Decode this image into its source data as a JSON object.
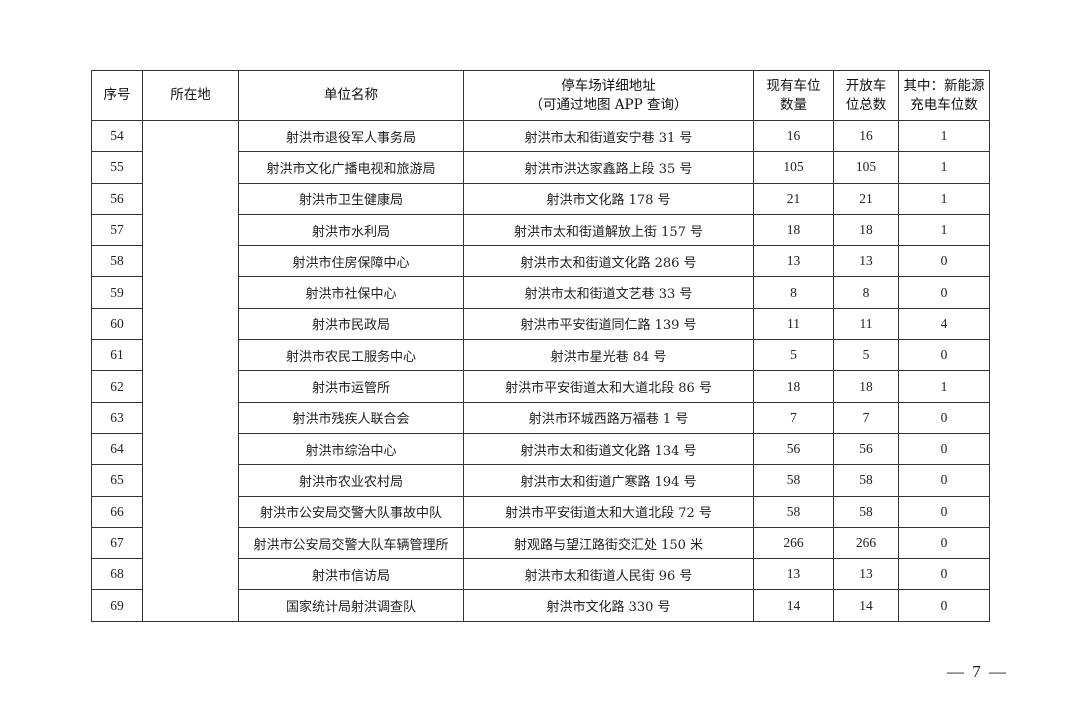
{
  "table": {
    "headers": {
      "index": "序号",
      "location": "所在地",
      "unit": "单位名称",
      "address_line1": "停车场详细地址",
      "address_line2": "（可通过地图 APP 查询）",
      "existing_line1": "现有车位",
      "existing_line2": "数量",
      "open_line1": "开放车",
      "open_line2": "位总数",
      "ev_line1": "其中：新能源",
      "ev_line2": "充电车位数"
    },
    "location_value": "",
    "rows": [
      {
        "index": "54",
        "unit": "射洪市退役军人事务局",
        "address": "射洪市太和街道安宁巷 31 号",
        "existing": "16",
        "open": "16",
        "ev": "1"
      },
      {
        "index": "55",
        "unit": "射洪市文化广播电视和旅游局",
        "address": "射洪市洪达家鑫路上段 35 号",
        "existing": "105",
        "open": "105",
        "ev": "1"
      },
      {
        "index": "56",
        "unit": "射洪市卫生健康局",
        "address": "射洪市文化路 178 号",
        "existing": "21",
        "open": "21",
        "ev": "1"
      },
      {
        "index": "57",
        "unit": "射洪市水利局",
        "address": "射洪市太和街道解放上街 157 号",
        "existing": "18",
        "open": "18",
        "ev": "1"
      },
      {
        "index": "58",
        "unit": "射洪市住房保障中心",
        "address": "射洪市太和街道文化路 286 号",
        "existing": "13",
        "open": "13",
        "ev": "0"
      },
      {
        "index": "59",
        "unit": "射洪市社保中心",
        "address": "射洪市太和街道文艺巷 33 号",
        "existing": "8",
        "open": "8",
        "ev": "0"
      },
      {
        "index": "60",
        "unit": "射洪市民政局",
        "address": "射洪市平安街道同仁路 139 号",
        "existing": "11",
        "open": "11",
        "ev": "4"
      },
      {
        "index": "61",
        "unit": "射洪市农民工服务中心",
        "address": "射洪市星光巷 84 号",
        "existing": "5",
        "open": "5",
        "ev": "0"
      },
      {
        "index": "62",
        "unit": "射洪市运管所",
        "address": "射洪市平安街道太和大道北段 86 号",
        "existing": "18",
        "open": "18",
        "ev": "1"
      },
      {
        "index": "63",
        "unit": "射洪市残疾人联合会",
        "address": "射洪市环城西路万福巷 1 号",
        "existing": "7",
        "open": "7",
        "ev": "0"
      },
      {
        "index": "64",
        "unit": "射洪市综治中心",
        "address": "射洪市太和街道文化路 134 号",
        "existing": "56",
        "open": "56",
        "ev": "0"
      },
      {
        "index": "65",
        "unit": "射洪市农业农村局",
        "address": "射洪市太和街道广寒路 194 号",
        "existing": "58",
        "open": "58",
        "ev": "0"
      },
      {
        "index": "66",
        "unit": "射洪市公安局交警大队事故中队",
        "address": "射洪市平安街道太和大道北段 72 号",
        "existing": "58",
        "open": "58",
        "ev": "0"
      },
      {
        "index": "67",
        "unit": "射洪市公安局交警大队车辆管理所",
        "address": "射观路与望江路街交汇处 150 米",
        "existing": "266",
        "open": "266",
        "ev": "0"
      },
      {
        "index": "68",
        "unit": "射洪市信访局",
        "address": "射洪市太和街道人民街 96 号",
        "existing": "13",
        "open": "13",
        "ev": "0"
      },
      {
        "index": "69",
        "unit": "国家统计局射洪调查队",
        "address": "射洪市文化路 330 号",
        "existing": "14",
        "open": "14",
        "ev": "0"
      }
    ]
  },
  "footer": {
    "page_number": "— 7 —"
  }
}
